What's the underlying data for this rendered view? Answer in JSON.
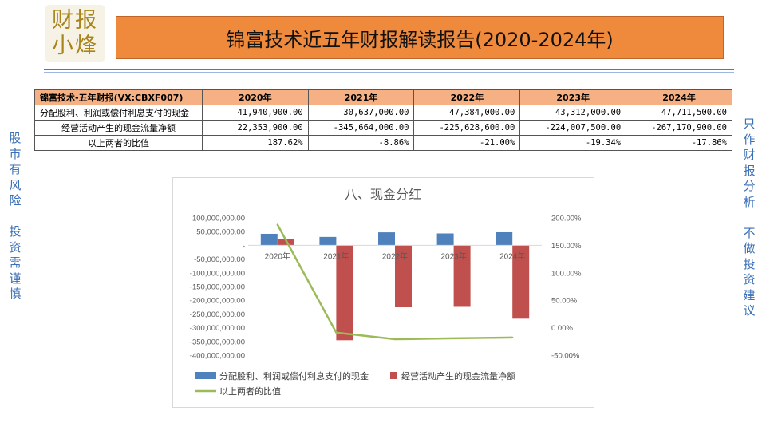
{
  "logo": {
    "line1": "财报",
    "line2": "小烽"
  },
  "banner": {
    "title": "锦富技术近五年财报解读报告(2020-2024年)"
  },
  "side_left": [
    "股市有风险",
    "投资需谨慎"
  ],
  "side_right": [
    "只作财报分析",
    "不做投资建议"
  ],
  "table": {
    "header": [
      "锦富技术-五年财报(VX:CBXF007)",
      "2020年",
      "2021年",
      "2022年",
      "2023年",
      "2024年"
    ],
    "rows": [
      {
        "label": "分配股利、利润或偿付利息支付的现金",
        "values": [
          "41,940,900.00",
          "30,637,000.00",
          "47,384,000.00",
          "43,312,000.00",
          "47,711,500.00"
        ]
      },
      {
        "label": "经营活动产生的现金流量净额",
        "values": [
          "22,353,900.00",
          "-345,664,000.00",
          "-225,628,600.00",
          "-224,007,500.00",
          "-267,170,900.00"
        ]
      },
      {
        "label": "以上两者的比值",
        "values": [
          "187.62%",
          "-8.86%",
          "-21.00%",
          "-19.34%",
          "-17.86%"
        ]
      }
    ]
  },
  "chart_data": {
    "type": "bar",
    "title": "八、现金分红",
    "categories": [
      "2020年",
      "2021年",
      "2022年",
      "2023年",
      "2024年"
    ],
    "series": [
      {
        "name": "分配股利、利润或偿付利息支付的现金",
        "type": "bar",
        "axis": "left",
        "color": "#4f81bd",
        "values": [
          41940900,
          30637000,
          47384000,
          43312000,
          47711500
        ]
      },
      {
        "name": "经营活动产生的现金流量净额",
        "type": "bar",
        "axis": "left",
        "color": "#c0504d",
        "values": [
          22353900,
          -345664000,
          -225628600,
          -224007500,
          -267170900
        ]
      },
      {
        "name": "以上两者的比值",
        "type": "line",
        "axis": "right",
        "color": "#9bbb59",
        "values": [
          187.62,
          -8.86,
          -21.0,
          -19.34,
          -17.86
        ]
      }
    ],
    "ylim_left": [
      -400000000,
      100000000
    ],
    "yticks_left": [
      "100,000,000.00",
      "50,000,000.00",
      "-",
      "-50,000,000.00",
      "-100,000,000.00",
      "-150,000,000.00",
      "-200,000,000.00",
      "-250,000,000.00",
      "-300,000,000.00",
      "-350,000,000.00",
      "-400,000,000.00"
    ],
    "ylim_right": [
      -50,
      200
    ],
    "yticks_right": [
      "200.00%",
      "150.00%",
      "100.00%",
      "50.00%",
      "0.00%",
      "-50.00%"
    ],
    "grid": false,
    "legend_position": "bottom"
  }
}
